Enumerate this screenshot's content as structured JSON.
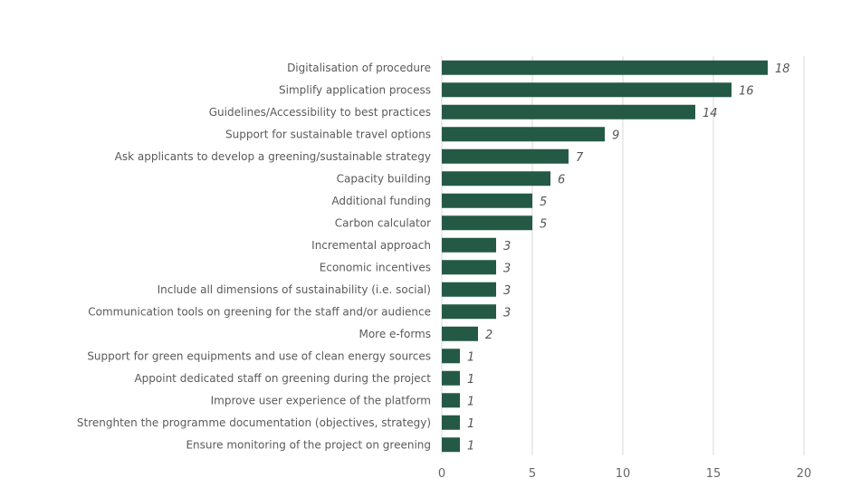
{
  "chart_data": {
    "type": "bar",
    "orientation": "horizontal",
    "title": "",
    "xlabel": "",
    "ylabel": "",
    "xlim": [
      0,
      20
    ],
    "ticks": [
      "0",
      "5",
      "10",
      "15",
      "20"
    ],
    "grid": true,
    "bar_color": "#245a45",
    "categories": [
      "Digitalisation of procedure",
      "Simplify application process",
      "Guidelines/Accessibility to best practices",
      "Support for sustainable travel options",
      "Ask applicants to develop a greening/sustainable strategy",
      "Capacity building",
      "Additional funding",
      "Carbon calculator",
      "Incremental approach",
      "Economic incentives",
      "Include all dimensions of sustainability (i.e. social)",
      "Communication tools on greening for the staff and/or audience",
      "More e-forms",
      "Support for green equipments and use of clean energy sources",
      "Appoint dedicated staff on greening during the project",
      "Improve user experience of the platform",
      "Strenghten the programme documentation (objectives, strategy)",
      "Ensure monitoring of the project on greening"
    ],
    "values": [
      18,
      16,
      14,
      9,
      7,
      6,
      5,
      5,
      3,
      3,
      3,
      3,
      2,
      1,
      1,
      1,
      1,
      1
    ]
  }
}
